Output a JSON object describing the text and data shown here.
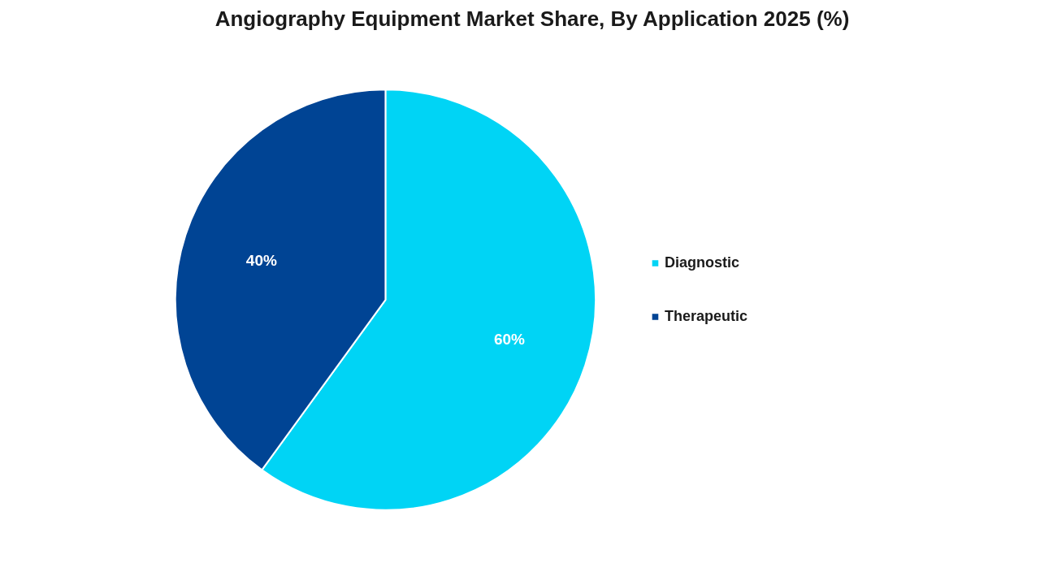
{
  "chart_data": {
    "type": "pie",
    "title": "Angiography Equipment Market Share, By Application 2025 (%)",
    "categories": [
      "Diagnostic",
      "Therapeutic"
    ],
    "values": [
      60,
      40
    ],
    "colors": [
      "#00d4f5",
      "#004494"
    ],
    "value_labels": [
      "60%",
      "40%"
    ],
    "legend": "right"
  }
}
